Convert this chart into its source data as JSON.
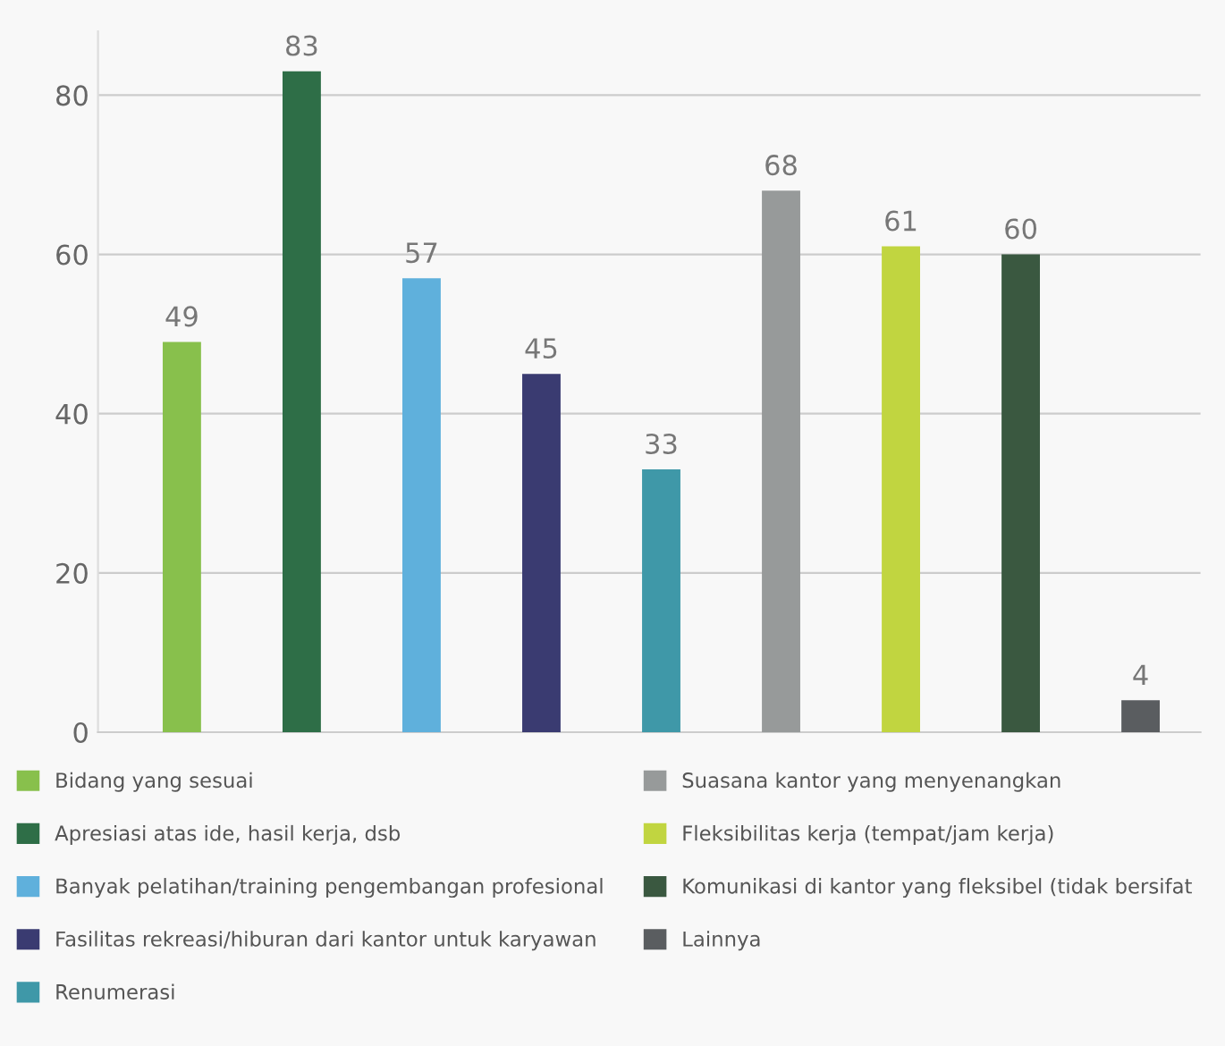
{
  "chart_data": {
    "type": "bar",
    "categories": [
      null,
      null,
      null,
      null,
      null,
      null,
      null,
      null,
      null
    ],
    "series": [
      {
        "name": "Bidang yang sesuai",
        "color": "#88c04c",
        "values": [
          49,
          null,
          null,
          null,
          null,
          null,
          null,
          null,
          null
        ]
      },
      {
        "name": "Apresiasi atas ide, hasil kerja, dsb",
        "color": "#2e6e47",
        "values": [
          null,
          83,
          null,
          null,
          null,
          null,
          null,
          null,
          null
        ]
      },
      {
        "name": "Banyak pelatihan/training pengembangan profesional",
        "color": "#5fb0dc",
        "values": [
          null,
          null,
          57,
          null,
          null,
          null,
          null,
          null,
          null
        ]
      },
      {
        "name": "Fasilitas rekreasi/hiburan dari kantor untuk karyawan",
        "color": "#3a3b71",
        "values": [
          null,
          null,
          null,
          45,
          null,
          null,
          null,
          null,
          null
        ]
      },
      {
        "name": "Renumerasi",
        "color": "#3f98a8",
        "values": [
          null,
          null,
          null,
          null,
          33,
          null,
          null,
          null,
          null
        ]
      },
      {
        "name": "Suasana kantor yang menyenangkan",
        "color": "#979a9a",
        "values": [
          null,
          null,
          null,
          null,
          null,
          68,
          null,
          null,
          null
        ]
      },
      {
        "name": "Fleksibilitas kerja (tempat/jam kerja)",
        "color": "#c1d540",
        "values": [
          null,
          null,
          null,
          null,
          null,
          null,
          61,
          null,
          null
        ]
      },
      {
        "name": "Komunikasi di kantor yang fleksibel (tidak bersifat",
        "color": "#3a5840",
        "values": [
          null,
          null,
          null,
          null,
          null,
          null,
          null,
          60,
          null
        ]
      },
      {
        "name": "Lainnya",
        "color": "#5a5d60",
        "values": [
          null,
          null,
          null,
          null,
          null,
          null,
          null,
          null,
          4
        ]
      }
    ],
    "ylim": [
      0,
      88
    ],
    "yticks": [
      0,
      20,
      40,
      60,
      80
    ],
    "grid": "y",
    "data_labels": true,
    "legend": "bottom",
    "tick_labels": "y"
  }
}
